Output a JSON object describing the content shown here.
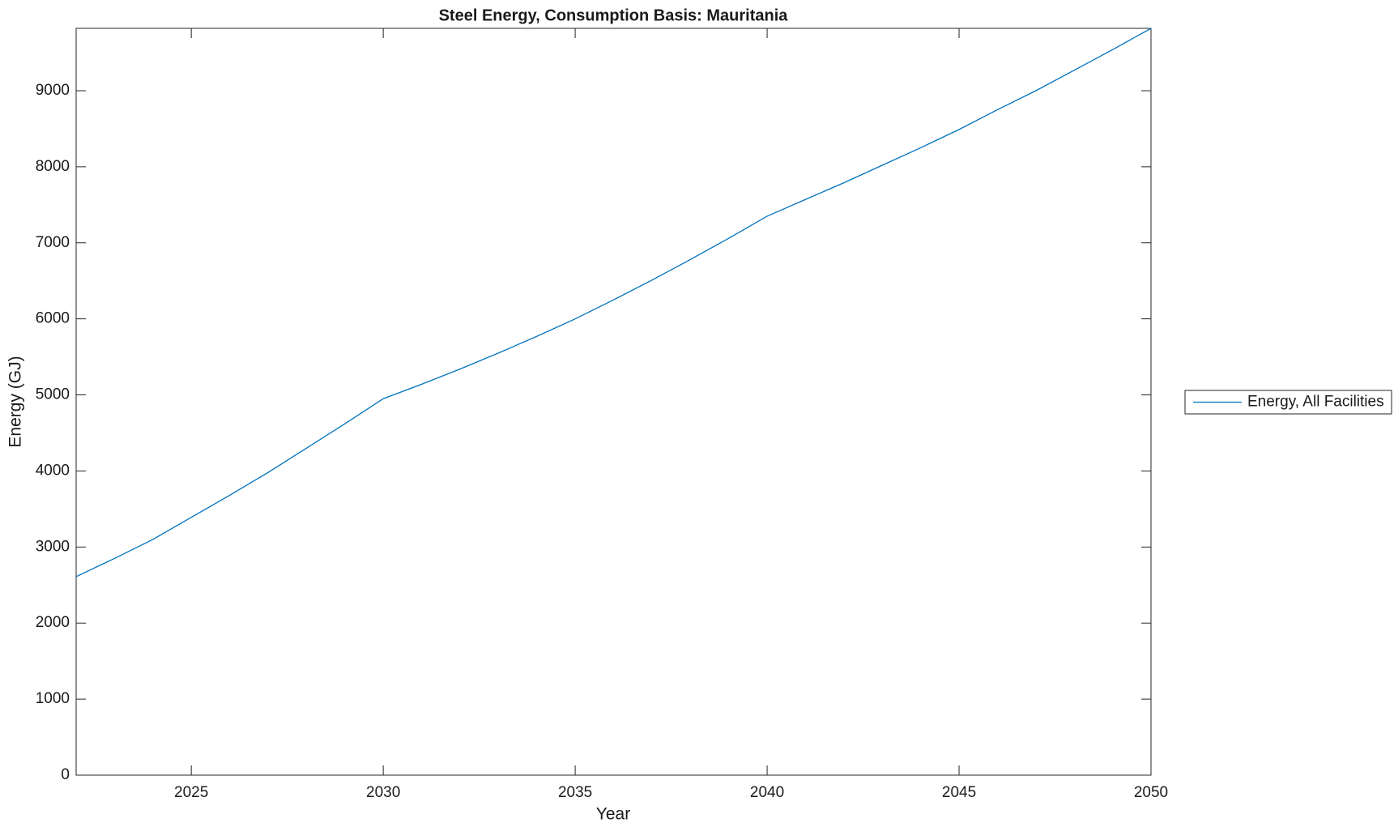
{
  "chart_data": {
    "type": "line",
    "title": "Steel Energy, Consumption Basis: Mauritania",
    "xlabel": "Year",
    "ylabel": "Energy (GJ)",
    "x": [
      2022,
      2023,
      2024,
      2025,
      2026,
      2027,
      2028,
      2029,
      2030,
      2031,
      2032,
      2033,
      2034,
      2035,
      2036,
      2037,
      2038,
      2039,
      2040,
      2041,
      2042,
      2043,
      2044,
      2045,
      2046,
      2047,
      2048,
      2049,
      2050
    ],
    "series": [
      {
        "name": "Energy, All Facilities",
        "color": "#0072bd",
        "values": [
          2610,
          2850,
          3100,
          3390,
          3680,
          3980,
          4300,
          4620,
          4950,
          5140,
          5340,
          5550,
          5770,
          6000,
          6250,
          6510,
          6780,
          7060,
          7350,
          7570,
          7790,
          8020,
          8250,
          8490,
          8750,
          9000,
          9270,
          9540,
          9820
        ]
      }
    ],
    "xlim": [
      2022,
      2050
    ],
    "xticks": [
      2025,
      2030,
      2035,
      2040,
      2045,
      2050
    ],
    "ylim": [
      0,
      9820
    ],
    "yticks": [
      0,
      1000,
      2000,
      3000,
      4000,
      5000,
      6000,
      7000,
      8000,
      9000
    ],
    "legend": "right"
  }
}
